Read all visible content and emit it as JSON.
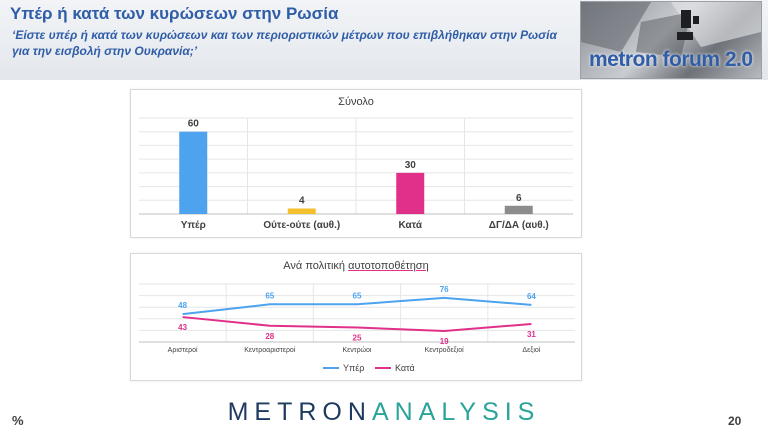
{
  "header": {
    "title": "Υπέρ ή κατά των κυρώσεων στην Ρωσία",
    "subtitle": "‘Είστε υπέρ ή κατά των κυρώσεων και των περιοριστικών μέτρων που επιβλήθηκαν στην Ρωσία για την εισβολή στην Ουκρανία;’",
    "logo_text": "metron forum 2.0"
  },
  "chart_data": [
    {
      "type": "bar",
      "title": "Σύνολο",
      "categories": [
        "Υπέρ",
        "Ούτε-ούτε (αυθ.)",
        "Κατά",
        "ΔΓ/ΔΑ (αυθ.)"
      ],
      "values": [
        60,
        4,
        30,
        6
      ],
      "colors": [
        "#4da3ee",
        "#f3c12d",
        "#e0308a",
        "#8c8c8c"
      ],
      "ylim": [
        0,
        70
      ],
      "grid": true
    },
    {
      "type": "line",
      "title_prefix": "Ανά πολιτική ",
      "title_underlined": "αυτοτοποθέτηση",
      "categories": [
        "Αριστεροί",
        "Κεντροαριστεροί",
        "Κεντρώοι",
        "Κεντροδεξιοί",
        "Δεξιοί"
      ],
      "series": [
        {
          "name": "Υπέρ",
          "values": [
            48,
            65,
            65,
            76,
            64
          ],
          "color": "#4da3ee"
        },
        {
          "name": "Κατά",
          "values": [
            43,
            28,
            25,
            19,
            31
          ],
          "color": "#e0308a"
        }
      ],
      "ylim": [
        0,
        100
      ],
      "grid": true,
      "legend": "bottom"
    }
  ],
  "footer": {
    "percent_sign": "%",
    "brand_part1": "METRON",
    "brand_part2": "ANALYSIS",
    "page_number": "20"
  }
}
